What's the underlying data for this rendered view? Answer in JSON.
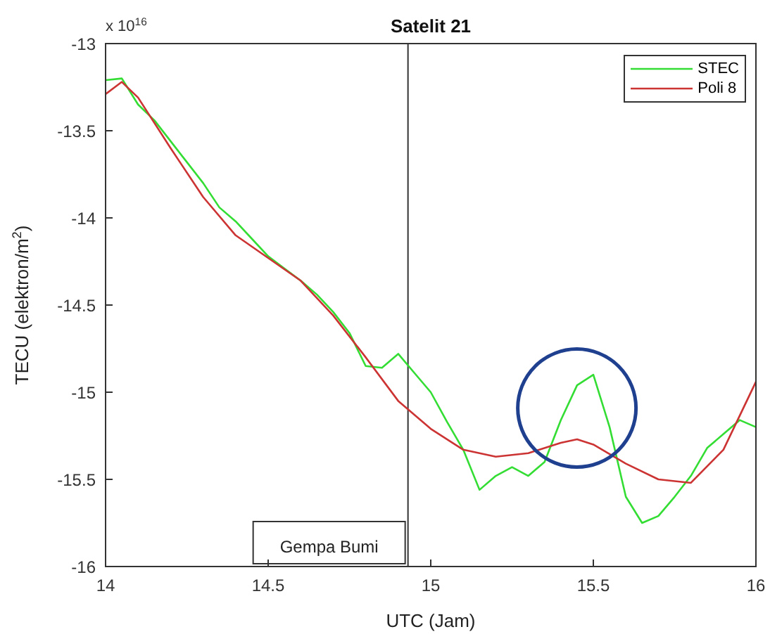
{
  "chart_data": {
    "type": "line",
    "title": "Satelit 21",
    "xlabel": "UTC (Jam)",
    "ylabel": "TECU (elektron/m$^{2}$)",
    "annotations": [
      "x 10$^{16}$"
    ],
    "xlim": [
      14,
      16
    ],
    "xticks": [
      14,
      14.5,
      15,
      15.5,
      16
    ],
    "ylim": [
      -16,
      -13
    ],
    "yticks": [
      -16,
      -15.5,
      -15,
      -14.5,
      -14,
      -13.5,
      -13
    ],
    "grid": false,
    "legend": "top right",
    "marker": "none",
    "line_style": "solid",
    "ref_lines": [
      {
        "axis": "x",
        "value": 14.93,
        "label": "Gempa Bumi",
        "color": "#333333"
      }
    ],
    "series": [
      {
        "name": "STEC",
        "color": "#33dd33",
        "x": [
          14,
          14.05,
          14.1,
          14.15,
          14.2,
          14.25,
          14.3,
          14.35,
          14.4,
          14.45,
          14.5,
          14.55,
          14.6,
          14.65,
          14.7,
          14.75,
          14.8,
          14.85,
          14.9,
          14.95,
          15,
          15.05,
          15.1,
          15.15,
          15.2,
          15.25,
          15.3,
          15.35,
          15.4,
          15.45,
          15.5,
          15.55,
          15.6,
          15.65,
          15.7,
          15.75,
          15.8,
          15.85,
          15.9,
          15.95,
          16
        ],
        "values": [
          -13.21,
          -13.2,
          -13.35,
          -13.44,
          -13.56,
          -13.68,
          -13.8,
          -13.94,
          -14.02,
          -14.12,
          -14.22,
          -14.29,
          -14.36,
          -14.44,
          -14.54,
          -14.66,
          -14.85,
          -14.86,
          -14.78,
          -14.89,
          -15,
          -15.17,
          -15.33,
          -15.56,
          -15.48,
          -15.43,
          -15.48,
          -15.4,
          -15.16,
          -14.96,
          -14.9,
          -15.2,
          -15.6,
          -15.75,
          -15.71,
          -15.6,
          -15.48,
          -15.32,
          -15.24,
          -15.16,
          -15.2
        ]
      },
      {
        "name": "Poli 8",
        "color": "#cc3333",
        "x": [
          14,
          14.05,
          14.1,
          14.2,
          14.3,
          14.4,
          14.5,
          14.6,
          14.7,
          14.8,
          14.9,
          15,
          15.1,
          15.2,
          15.3,
          15.4,
          15.45,
          15.5,
          15.6,
          15.7,
          15.8,
          15.9,
          16
        ],
        "values": [
          -13.29,
          -13.22,
          -13.31,
          -13.6,
          -13.88,
          -14.1,
          -14.23,
          -14.36,
          -14.56,
          -14.8,
          -15.05,
          -15.21,
          -15.33,
          -15.37,
          -15.35,
          -15.29,
          -15.27,
          -15.3,
          -15.41,
          -15.5,
          -15.52,
          -15.33,
          -14.94
        ]
      }
    ]
  }
}
